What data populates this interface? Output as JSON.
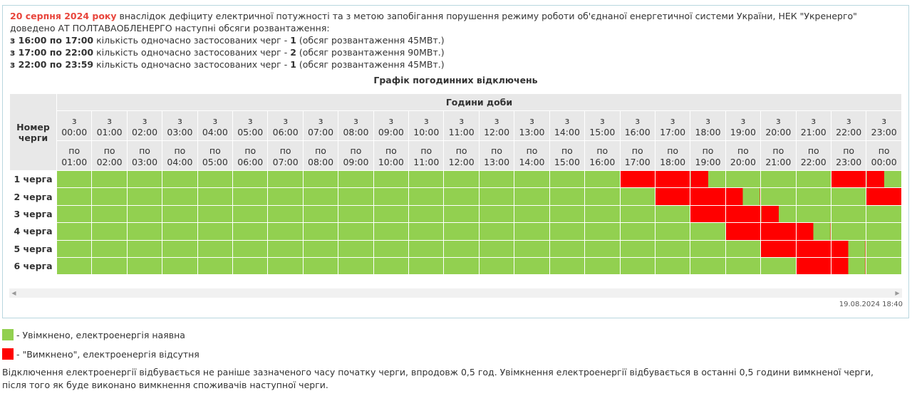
{
  "intro": {
    "date": "20 серпня 2024 року",
    "text": " внаслідок дефіциту електричної потужності та з метою запобігання порушення режиму роботи об'єднаної енергетичної системи України, НЕК \"Укренерго\" доведено АТ ПОЛТАВАОБЛЕНЕРГО наступні обсяги розвантаження:",
    "lines": [
      {
        "period": "з 16:00 по 17:00",
        "mid": " кількість одночасно застосованих черг - ",
        "count": "1",
        "rest": " (обсяг розвантаження 45МВт.)"
      },
      {
        "period": "з 17:00 по 22:00",
        "mid": " кількість одночасно застосованих черг - ",
        "count": "2",
        "rest": " (обсяг розвантаження 90МВт.)"
      },
      {
        "period": "з 22:00 по 23:59",
        "mid": " кількість одночасно застосованих черг - ",
        "count": "1",
        "rest": " (обсяг розвантаження 45МВт.)"
      }
    ]
  },
  "schedule": {
    "title": "Графік погодинних відключень",
    "queue_header": "Номер черги",
    "hours_header": "Години доби",
    "from_prefix": "з",
    "to_prefix": "по",
    "from_times": [
      "00:00",
      "01:00",
      "02:00",
      "03:00",
      "04:00",
      "05:00",
      "06:00",
      "07:00",
      "08:00",
      "09:00",
      "10:00",
      "11:00",
      "12:00",
      "13:00",
      "14:00",
      "15:00",
      "16:00",
      "17:00",
      "18:00",
      "19:00",
      "20:00",
      "21:00",
      "22:00",
      "23:00"
    ],
    "to_times": [
      "01:00",
      "02:00",
      "03:00",
      "04:00",
      "05:00",
      "06:00",
      "07:00",
      "08:00",
      "09:00",
      "10:00",
      "11:00",
      "12:00",
      "13:00",
      "14:00",
      "15:00",
      "16:00",
      "17:00",
      "18:00",
      "19:00",
      "20:00",
      "21:00",
      "22:00",
      "23:00",
      "00:00"
    ],
    "rows": [
      {
        "label": "1 черга",
        "cells": [
          "on",
          "on",
          "on",
          "on",
          "on",
          "on",
          "on",
          "on",
          "on",
          "on",
          "on",
          "on",
          "on",
          "on",
          "on",
          "on",
          "off",
          "off",
          "halfR",
          "on",
          "on",
          "on",
          "off",
          "halfR"
        ]
      },
      {
        "label": "2 черга",
        "cells": [
          "on",
          "on",
          "on",
          "on",
          "on",
          "on",
          "on",
          "on",
          "on",
          "on",
          "on",
          "on",
          "on",
          "on",
          "on",
          "on",
          "on",
          "off",
          "off",
          "halfR",
          "on",
          "on",
          "on",
          "off"
        ]
      },
      {
        "label": "3 черга",
        "cells": [
          "on",
          "on",
          "on",
          "on",
          "on",
          "on",
          "on",
          "on",
          "on",
          "on",
          "on",
          "on",
          "on",
          "on",
          "on",
          "on",
          "on",
          "on",
          "off",
          "off",
          "halfR",
          "on",
          "on",
          "on"
        ]
      },
      {
        "label": "4 черга",
        "cells": [
          "on",
          "on",
          "on",
          "on",
          "on",
          "on",
          "on",
          "on",
          "on",
          "on",
          "on",
          "on",
          "on",
          "on",
          "on",
          "on",
          "on",
          "on",
          "on",
          "off",
          "off",
          "halfR",
          "on",
          "on"
        ]
      },
      {
        "label": "5 черга",
        "cells": [
          "on",
          "on",
          "on",
          "on",
          "on",
          "on",
          "on",
          "on",
          "on",
          "on",
          "on",
          "on",
          "on",
          "on",
          "on",
          "on",
          "on",
          "on",
          "on",
          "on",
          "off",
          "off",
          "halfR",
          "on"
        ]
      },
      {
        "label": "6 черга",
        "cells": [
          "on",
          "on",
          "on",
          "on",
          "on",
          "on",
          "on",
          "on",
          "on",
          "on",
          "on",
          "on",
          "on",
          "on",
          "on",
          "on",
          "on",
          "on",
          "on",
          "on",
          "on",
          "off",
          "halfR",
          "on"
        ]
      }
    ],
    "timestamp": "19.08.2024 18:40"
  },
  "legend": {
    "on_label": "- Увімкнено, електроенергія наявна",
    "off_label": "- \"Вимкнено\", електроенергія відсутня",
    "on_color": "#92d050",
    "off_color": "#ff0000"
  },
  "note": "Відключення електроенергії відбувається не раніше зазначеного часу початку черги, впродовж 0,5 год. Увімкнення електроенергії відбувається в останні 0,5 години вимкненої черги, після того як буде виконано вимкнення споживачів наступної черги."
}
